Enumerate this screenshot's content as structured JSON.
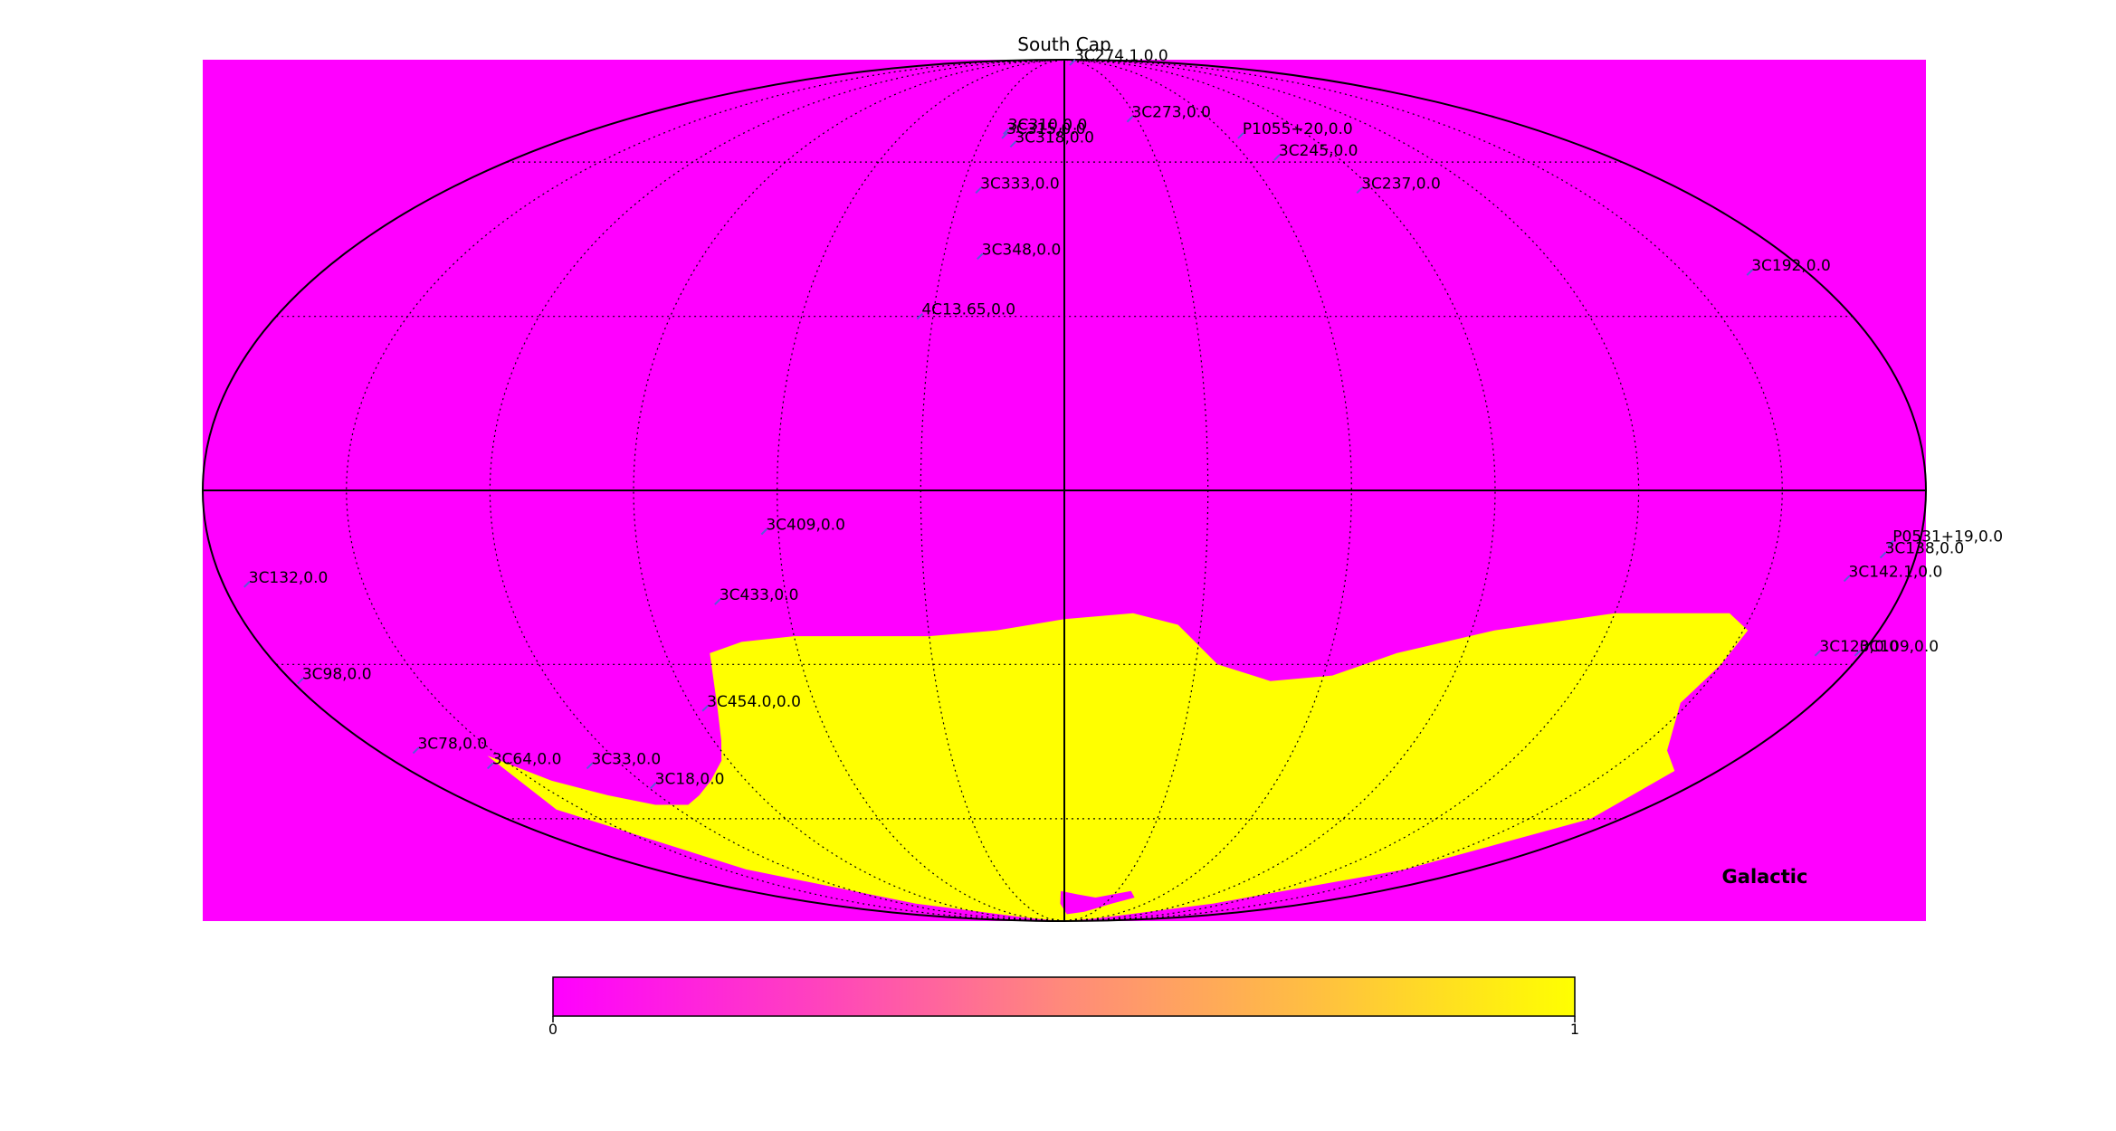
{
  "title": "South Cap",
  "frame_label": "Galactic",
  "colorbar": {
    "min_label": "0",
    "max_label": "1"
  },
  "colors": {
    "background_map": "#ff00ff",
    "coverage": "#ffff00",
    "graticule": "#000000",
    "marker": "#5b5bd6",
    "colorbar_stops": [
      "#ff00ff",
      "#ff40c0",
      "#ff8a7a",
      "#ffc040",
      "#ffff00"
    ]
  },
  "projection": "mollweide",
  "graticule": {
    "meridian_step_deg": 30,
    "parallel_step_deg": 30
  },
  "sources": [
    {
      "name": "3C274.1,0.0",
      "lon": -15,
      "lat": 88
    },
    {
      "name": "3C273,0.0",
      "lon": -27,
      "lat": 70
    },
    {
      "name": "P1055+20,0.0",
      "lon": -65,
      "lat": 66
    },
    {
      "name": "3C245,0.0",
      "lon": -70,
      "lat": 61
    },
    {
      "name": "3C237,0.0",
      "lon": -86,
      "lat": 54
    },
    {
      "name": "3C310,0.0",
      "lon": 22,
      "lat": 67
    },
    {
      "name": "3C315,0.0",
      "lon": 22,
      "lat": 66
    },
    {
      "name": "3C318,0.0",
      "lon": 18,
      "lat": 64
    },
    {
      "name": "3C333,0.0",
      "lon": 25,
      "lat": 54
    },
    {
      "name": "3C348,0.0",
      "lon": 21,
      "lat": 41
    },
    {
      "name": "4C13.65,0.0",
      "lon": 33,
      "lat": 30
    },
    {
      "name": "3C192,0.0",
      "lon": -166,
      "lat": 38
    },
    {
      "name": "3C409,0.0",
      "lon": 63,
      "lat": -7
    },
    {
      "name": "3C132,0.0",
      "lon": 175,
      "lat": -16
    },
    {
      "name": "3C433,0.0",
      "lon": 75,
      "lat": -19
    },
    {
      "name": "3C98,0.0",
      "lon": 178,
      "lat": -33
    },
    {
      "name": "3C454.0,0.0",
      "lon": 87,
      "lat": -38
    },
    {
      "name": "3C78,0.0",
      "lon": 170,
      "lat": -46
    },
    {
      "name": "3C64,0.0",
      "lon": 156,
      "lat": -49
    },
    {
      "name": "3C33,0.0",
      "lon": 129,
      "lat": -49
    },
    {
      "name": "3C18,0.0",
      "lon": 118,
      "lat": -53
    },
    {
      "name": "P0531+19,0.0",
      "lon": -174,
      "lat": -9
    },
    {
      "name": "3C138,0.0",
      "lon": -173,
      "lat": -11
    },
    {
      "name": "3C142.1,0.0",
      "lon": -167,
      "lat": -15
    },
    {
      "name": "3C120,0.0",
      "lon": -170,
      "lat": -28
    },
    {
      "name": "3C109,0.0",
      "lon": -179,
      "lat": -28
    }
  ],
  "coverage_region": {
    "description_level": "covered (value 1) region in southern galactic hemisphere",
    "boundary": [
      [
        153,
        -47
      ],
      [
        145,
        -52
      ],
      [
        135,
        -55
      ],
      [
        125,
        -57
      ],
      [
        115,
        -57
      ],
      [
        108,
        -55
      ],
      [
        100,
        -52
      ],
      [
        92,
        -48
      ],
      [
        88,
        -44
      ],
      [
        84,
        -38
      ],
      [
        80,
        -28
      ],
      [
        72,
        -26
      ],
      [
        60,
        -25
      ],
      [
        45,
        -25
      ],
      [
        30,
        -25
      ],
      [
        15,
        -24
      ],
      [
        0,
        -22
      ],
      [
        -15,
        -21
      ],
      [
        -25,
        -23
      ],
      [
        -35,
        -30
      ],
      [
        -48,
        -33
      ],
      [
        -62,
        -32
      ],
      [
        -75,
        -28
      ],
      [
        -95,
        -24
      ],
      [
        -120,
        -21
      ],
      [
        -145,
        -21
      ],
      [
        -151,
        -24
      ],
      [
        -150,
        -30
      ],
      [
        -148,
        -37
      ],
      [
        -158,
        -46
      ],
      [
        -168,
        -50
      ]
    ],
    "hole": [
      [
        3,
        -82
      ],
      [
        -3,
        -86
      ],
      [
        -20,
        -85
      ],
      [
        -35,
        -82
      ],
      [
        -45,
        -80
      ],
      [
        -38,
        -78
      ],
      [
        -20,
        -80
      ],
      [
        -8,
        -79
      ],
      [
        2,
        -78
      ]
    ]
  }
}
